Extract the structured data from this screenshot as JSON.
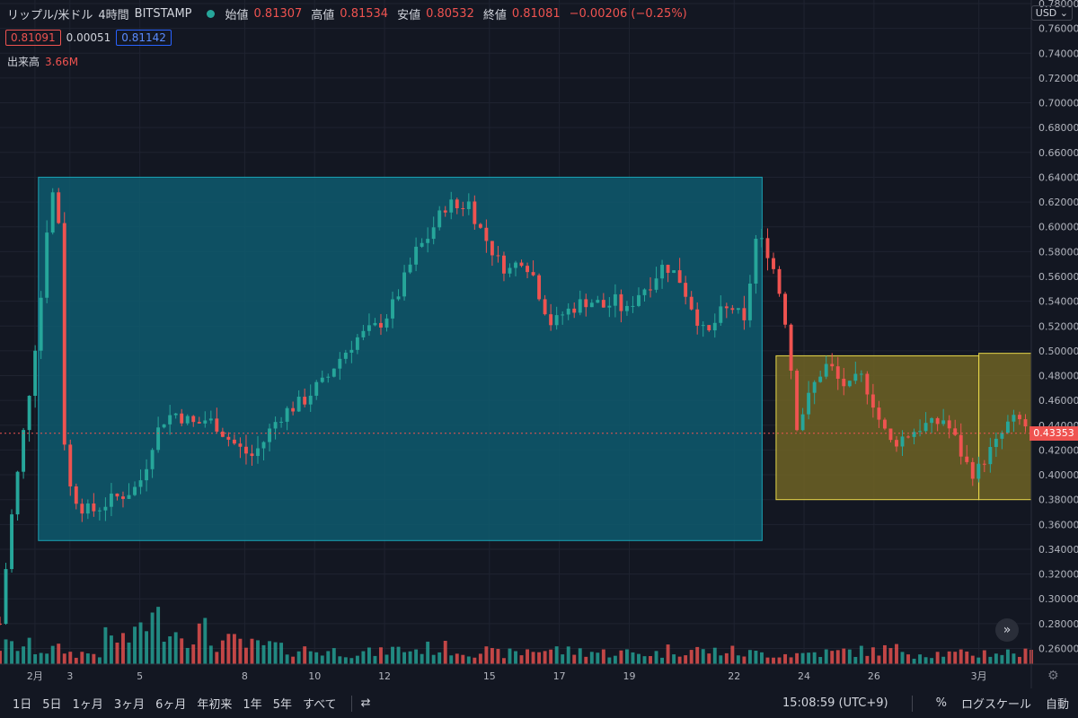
{
  "header": {
    "symbol": "リップル/米ドル",
    "interval": "4時間",
    "exchange": "BITSTAMP",
    "open_label": "始値",
    "open": "0.81307",
    "high_label": "高値",
    "high": "0.81534",
    "low_label": "安値",
    "low": "0.80532",
    "close_label": "終値",
    "close": "0.81081",
    "change": "−0.00206 (−0.25%)"
  },
  "quote": {
    "sell": "0.81091",
    "spread": "0.00051",
    "buy": "0.81142"
  },
  "volume": {
    "label": "出来高",
    "value": "3.66M"
  },
  "currency": "USD",
  "current_price": "0.43353",
  "bottom_bar": {
    "timeframes": [
      "1日",
      "5日",
      "1ヶ月",
      "3ヶ月",
      "6ヶ月",
      "年初来",
      "1年",
      "5年",
      "すべて"
    ],
    "time": "15:08:59 (UTC+9)",
    "percent": "%",
    "log": "ログスケール",
    "auto": "自動"
  },
  "colors": {
    "up": "#26a69a",
    "down": "#ef5350",
    "teal_box": "#0e5a6e",
    "yellow_box": "#6e6324",
    "background": "#131722"
  },
  "chart_data": {
    "type": "candlestick",
    "ylim": [
      0.25,
      0.78
    ],
    "yticks": [
      "0.78000",
      "0.76000",
      "0.74000",
      "0.72000",
      "0.70000",
      "0.68000",
      "0.66000",
      "0.64000",
      "0.62000",
      "0.60000",
      "0.58000",
      "0.56000",
      "0.54000",
      "0.52000",
      "0.50000",
      "0.48000",
      "0.46000",
      "0.44000",
      "0.42000",
      "0.40000",
      "0.38000",
      "0.36000",
      "0.34000",
      "0.32000",
      "0.30000",
      "0.28000",
      "0.26000"
    ],
    "xticks": [
      "2月",
      "3",
      "5",
      "8",
      "10",
      "12",
      "15",
      "17",
      "19",
      "22",
      "24",
      "26",
      "3月"
    ],
    "xtick_day_index": [
      1,
      2,
      4,
      7,
      9,
      11,
      14,
      16,
      18,
      21,
      23,
      25,
      28
    ],
    "days": 30,
    "grid": true,
    "close_path": [
      [
        0,
        0.28
      ],
      [
        0.3,
        0.36
      ],
      [
        0.6,
        0.42
      ],
      [
        0.9,
        0.48
      ],
      [
        1.2,
        0.55
      ],
      [
        1.4,
        0.62
      ],
      [
        1.55,
        0.63
      ],
      [
        1.7,
        0.6
      ],
      [
        1.85,
        0.42
      ],
      [
        2.0,
        0.39
      ],
      [
        2.3,
        0.375
      ],
      [
        2.6,
        0.37
      ],
      [
        2.9,
        0.375
      ],
      [
        3.2,
        0.38
      ],
      [
        3.6,
        0.385
      ],
      [
        3.9,
        0.39
      ],
      [
        4.1,
        0.4
      ],
      [
        4.4,
        0.43
      ],
      [
        4.7,
        0.445
      ],
      [
        5.0,
        0.45
      ],
      [
        5.3,
        0.445
      ],
      [
        5.6,
        0.44
      ],
      [
        5.9,
        0.445
      ],
      [
        6.2,
        0.44
      ],
      [
        6.5,
        0.43
      ],
      [
        6.9,
        0.42
      ],
      [
        7.2,
        0.415
      ],
      [
        7.5,
        0.425
      ],
      [
        7.8,
        0.44
      ],
      [
        8.1,
        0.45
      ],
      [
        8.4,
        0.455
      ],
      [
        8.7,
        0.46
      ],
      [
        9.0,
        0.47
      ],
      [
        9.3,
        0.475
      ],
      [
        9.6,
        0.49
      ],
      [
        9.9,
        0.5
      ],
      [
        10.2,
        0.51
      ],
      [
        10.5,
        0.515
      ],
      [
        10.8,
        0.52
      ],
      [
        11.1,
        0.53
      ],
      [
        11.3,
        0.54
      ],
      [
        11.6,
        0.56
      ],
      [
        11.9,
        0.58
      ],
      [
        12.2,
        0.59
      ],
      [
        12.5,
        0.605
      ],
      [
        12.8,
        0.62
      ],
      [
        13.1,
        0.615
      ],
      [
        13.4,
        0.62
      ],
      [
        13.7,
        0.6
      ],
      [
        14.0,
        0.585
      ],
      [
        14.3,
        0.57
      ],
      [
        14.6,
        0.565
      ],
      [
        14.9,
        0.575
      ],
      [
        15.2,
        0.565
      ],
      [
        15.5,
        0.54
      ],
      [
        15.8,
        0.52
      ],
      [
        16.1,
        0.53
      ],
      [
        16.4,
        0.535
      ],
      [
        16.7,
        0.54
      ],
      [
        17.0,
        0.54
      ],
      [
        17.3,
        0.535
      ],
      [
        17.6,
        0.54
      ],
      [
        17.9,
        0.53
      ],
      [
        18.2,
        0.545
      ],
      [
        18.6,
        0.555
      ],
      [
        19.0,
        0.57
      ],
      [
        19.4,
        0.56
      ],
      [
        19.8,
        0.535
      ],
      [
        20.2,
        0.51
      ],
      [
        20.6,
        0.53
      ],
      [
        21.0,
        0.535
      ],
      [
        21.3,
        0.52
      ],
      [
        21.6,
        0.59
      ],
      [
        21.9,
        0.585
      ],
      [
        22.2,
        0.56
      ],
      [
        22.5,
        0.52
      ],
      [
        22.8,
        0.44
      ],
      [
        23.1,
        0.46
      ],
      [
        23.4,
        0.48
      ],
      [
        23.7,
        0.49
      ],
      [
        24.0,
        0.475
      ],
      [
        24.3,
        0.47
      ],
      [
        24.6,
        0.48
      ],
      [
        24.9,
        0.465
      ],
      [
        25.2,
        0.44
      ],
      [
        25.5,
        0.425
      ],
      [
        25.8,
        0.43
      ],
      [
        26.1,
        0.435
      ],
      [
        26.4,
        0.44
      ],
      [
        26.7,
        0.44
      ],
      [
        27.0,
        0.445
      ],
      [
        27.3,
        0.43
      ],
      [
        27.6,
        0.41
      ],
      [
        27.9,
        0.4
      ],
      [
        28.2,
        0.415
      ],
      [
        28.5,
        0.425
      ],
      [
        28.8,
        0.44
      ],
      [
        29.1,
        0.445
      ],
      [
        29.5,
        0.435
      ]
    ],
    "volume_path": [
      0.25,
      0.2,
      0.15,
      0.35,
      0.6,
      0.45,
      0.3,
      0.25,
      0.2,
      0.18,
      0.16,
      0.2,
      0.22,
      0.18,
      0.15,
      0.2,
      0.18,
      0.16,
      0.15,
      0.2,
      0.18,
      0.15,
      0.14,
      0.16,
      0.18,
      0.2,
      0.15,
      0.14,
      0.16,
      0.15
    ],
    "boxes": [
      {
        "name": "teal-range",
        "x0_day": 1.1,
        "x1_day": 21.8,
        "y0": 0.347,
        "y1": 0.64
      },
      {
        "name": "yellow-range-1",
        "x0_day": 22.2,
        "x1_day": 28.0,
        "y0": 0.38,
        "y1": 0.496
      },
      {
        "name": "yellow-range-2",
        "x0_day": 28.0,
        "x1_day": 29.5,
        "y0": 0.38,
        "y1": 0.498
      }
    ]
  }
}
